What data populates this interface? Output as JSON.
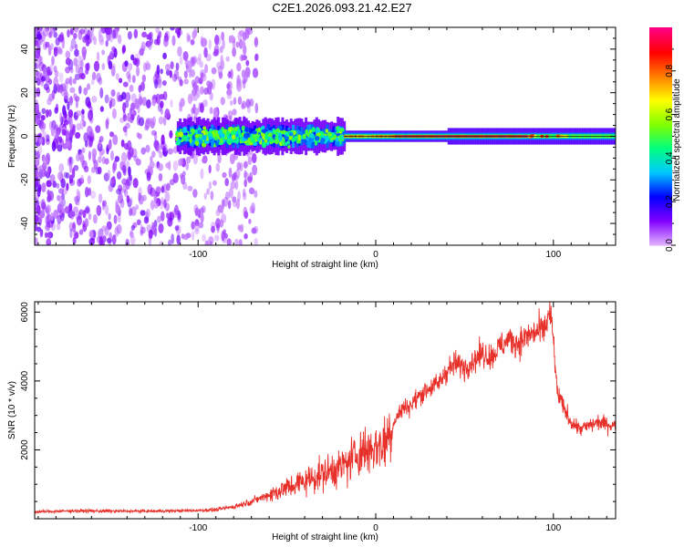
{
  "title": "C2E1.2026.093.21.42.E27",
  "chart_data": [
    {
      "type": "heatmap",
      "xlabel": "Height of straight line (km)",
      "ylabel": "Frequency (Hz)",
      "xlim": [
        -192,
        135
      ],
      "ylim": [
        -50,
        50
      ],
      "xticks": [
        -100,
        0,
        100
      ],
      "xtick_labels": [
        "-100",
        "0",
        "100"
      ],
      "yticks": [
        -40,
        -20,
        0,
        20,
        40
      ],
      "ytick_labels": [
        "-40",
        "-20",
        "0",
        "20",
        "40"
      ],
      "colorbar": {
        "label": "Normalized spectral amplitude",
        "range": [
          0,
          1
        ],
        "ticks": [
          0.0,
          0.2,
          0.4,
          0.6,
          0.8
        ],
        "tick_labels": [
          "0.0",
          "0.2",
          "0.4",
          "0.6",
          "0.8"
        ],
        "colormap": [
          "#e0b0ff",
          "#8000ff",
          "#0000ff",
          "#00c8ff",
          "#00ff80",
          "#80ff00",
          "#ffff00",
          "#ff8000",
          "#ff0000",
          "#ff0080"
        ]
      },
      "description_regions": [
        {
          "x_range": [
            -192,
            -75
          ],
          "freq_spread": 50,
          "amplitude": 0.15
        },
        {
          "x_range": [
            -112,
            -18
          ],
          "freq_spread": 6,
          "amplitude": 0.45
        },
        {
          "x_range": [
            -18,
            135
          ],
          "freq_spread": 2,
          "amplitude": 0.9
        }
      ]
    },
    {
      "type": "line",
      "xlabel": "Height of straight line (km)",
      "ylabel": "SNR (10 * v/v)",
      "xlim": [
        -192,
        135
      ],
      "ylim": [
        0,
        6300
      ],
      "xticks": [
        -100,
        0,
        100
      ],
      "xtick_labels": [
        "-100",
        "0",
        "100"
      ],
      "yticks": [
        2000,
        4000,
        6000
      ],
      "ytick_labels": [
        "2000",
        "4000",
        "6000"
      ],
      "color": "#e8302a",
      "series": [
        {
          "name": "SNR",
          "x": [
            -192,
            -170,
            -150,
            -130,
            -110,
            -90,
            -80,
            -70,
            -60,
            -50,
            -40,
            -30,
            -20,
            -15,
            -10,
            -5,
            0,
            5,
            10,
            15,
            20,
            25,
            30,
            35,
            40,
            45,
            50,
            55,
            60,
            65,
            70,
            75,
            80,
            85,
            90,
            95,
            98,
            100,
            102,
            105,
            110,
            115,
            120,
            125,
            130,
            135
          ],
          "values": [
            200,
            230,
            220,
            220,
            230,
            260,
            350,
            500,
            700,
            900,
            1100,
            1300,
            1500,
            1650,
            1900,
            2000,
            2100,
            2200,
            2800,
            3200,
            3300,
            3600,
            3800,
            3900,
            4300,
            4500,
            4400,
            4600,
            4800,
            4700,
            5000,
            5200,
            5100,
            5300,
            5400,
            5500,
            6000,
            5200,
            3700,
            3300,
            2800,
            2600,
            2700,
            2800,
            2750,
            2700
          ]
        }
      ]
    }
  ]
}
